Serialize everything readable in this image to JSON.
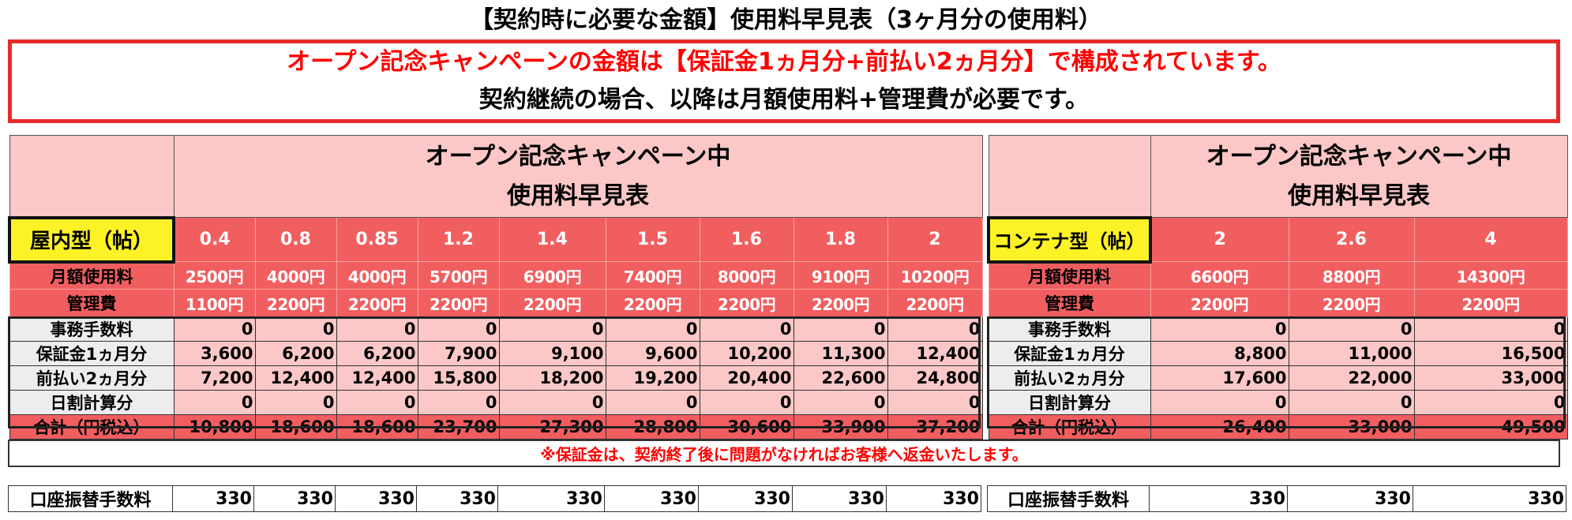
{
  "title": "【契約時に必要な金額】使用料早見表（3ヶ月分の使用料）",
  "notice": {
    "line1": "オープン記念キャンペーンの金額は【保証金1ヵ月分+前払い2ヵ月分】で構成されています。",
    "line2": "契約継続の場合、以降は月額使用料+管理費が必要です。"
  },
  "indoor": {
    "header_line1": "オープン記念キャンペーン中",
    "header_line2": "使用料早見表",
    "type_label": "屋内型（帖）",
    "sizes": [
      "0.4",
      "0.8",
      "0.85",
      "1.2",
      "1.4",
      "1.5",
      "1.6",
      "1.8",
      "2"
    ],
    "rows": [
      {
        "label": "月額使用料",
        "values": [
          "2500円",
          "4000円",
          "4000円",
          "5700円",
          "6900円",
          "7400円",
          "8000円",
          "9100円",
          "10200円"
        ]
      },
      {
        "label": "管理費",
        "values": [
          "1100円",
          "2200円",
          "2200円",
          "2200円",
          "2200円",
          "2200円",
          "2200円",
          "2200円",
          "2200円"
        ]
      },
      {
        "label": "事務手数料",
        "values": [
          "0",
          "0",
          "0",
          "0",
          "0",
          "0",
          "0",
          "0",
          "0"
        ]
      },
      {
        "label": "保証金1ヵ月分",
        "values": [
          "3,600",
          "6,200",
          "6,200",
          "7,900",
          "9,100",
          "9,600",
          "10,200",
          "11,300",
          "12,400"
        ]
      },
      {
        "label": "前払い2ヵ月分",
        "values": [
          "7,200",
          "12,400",
          "12,400",
          "15,800",
          "18,200",
          "19,200",
          "20,400",
          "22,600",
          "24,800"
        ]
      },
      {
        "label": "日割計算分",
        "values": [
          "0",
          "0",
          "0",
          "0",
          "0",
          "0",
          "0",
          "0",
          "0"
        ]
      },
      {
        "label": "合計（円税込）",
        "values": [
          "10,800",
          "18,600",
          "18,600",
          "23,700",
          "27,300",
          "28,800",
          "30,600",
          "33,900",
          "37,200"
        ]
      }
    ],
    "fee_label": "口座振替手数料",
    "fee_values": [
      "330",
      "330",
      "330",
      "330",
      "330",
      "330",
      "330",
      "330",
      "330"
    ]
  },
  "container": {
    "header_line1": "オープン記念キャンペーン中",
    "header_line2": "使用料早見表",
    "type_label": "コンテナ型（帖）",
    "sizes": [
      "2",
      "2.6",
      "4"
    ],
    "rows": [
      {
        "label": "月額使用料",
        "values": [
          "6600円",
          "8800円",
          "14300円"
        ]
      },
      {
        "label": "管理費",
        "values": [
          "2200円",
          "2200円",
          "2200円"
        ]
      },
      {
        "label": "事務手数料",
        "values": [
          "0",
          "0",
          "0"
        ]
      },
      {
        "label": "保証金1ヵ月分",
        "values": [
          "8,800",
          "11,000",
          "16,500"
        ]
      },
      {
        "label": "前払い2ヵ月分",
        "values": [
          "17,600",
          "22,000",
          "33,000"
        ]
      },
      {
        "label": "日割計算分",
        "values": [
          "0",
          "0",
          "0"
        ]
      },
      {
        "label": "合計（円税込）",
        "values": [
          "26,400",
          "33,000",
          "49,500"
        ]
      }
    ],
    "fee_label": "口座振替手数料",
    "fee_values": [
      "330",
      "330",
      "330"
    ]
  },
  "footnote": "※保証金は、契約終了後に問題がなければお客様へ返金いたします。",
  "colors": {
    "accent_red": "#f15e60",
    "light_pink": "#fbc7c7",
    "type_yellow": "#fdf226",
    "notice_red": "#ff0000"
  }
}
